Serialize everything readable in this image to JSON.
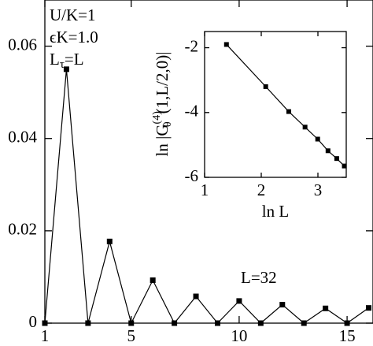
{
  "chart_data": [
    {
      "type": "line",
      "x": [
        1,
        2,
        3,
        4,
        5,
        6,
        7,
        8,
        9,
        10,
        11,
        12,
        13,
        14,
        15,
        16
      ],
      "values": [
        0,
        0.055,
        0,
        0.0177,
        0,
        0.0093,
        0,
        0.0058,
        0,
        0.0048,
        0,
        0.004,
        0,
        0.0032,
        0,
        0.0033
      ],
      "color": "#000000",
      "xlim": [
        1,
        16.2
      ],
      "ylim": [
        0,
        0.07
      ],
      "xticks": [
        1,
        5,
        10,
        15
      ],
      "yticks": [
        0,
        0.02,
        0.04,
        0.06
      ],
      "annotations": [
        "U/K=1",
        "ϵK=1.0",
        [
          "L",
          "τ",
          "=L"
        ],
        "L=32"
      ]
    },
    {
      "type": "line",
      "x": [
        1.386,
        2.079,
        2.485,
        2.773,
        2.996,
        3.178,
        3.332,
        3.466
      ],
      "values": [
        -1.9,
        -3.2,
        -3.97,
        -4.45,
        -4.82,
        -5.18,
        -5.42,
        -5.65
      ],
      "color": "#000000",
      "xlim": [
        1,
        3.5
      ],
      "ylim": [
        -6,
        -1.5
      ],
      "xticks": [
        1,
        2,
        3
      ],
      "yticks": [
        -6,
        -4,
        -2
      ],
      "x_label": "ln  L",
      "y_label": [
        "ln |G",
        "(4)",
        "θ",
        "(1,L/2,0)|"
      ]
    }
  ]
}
